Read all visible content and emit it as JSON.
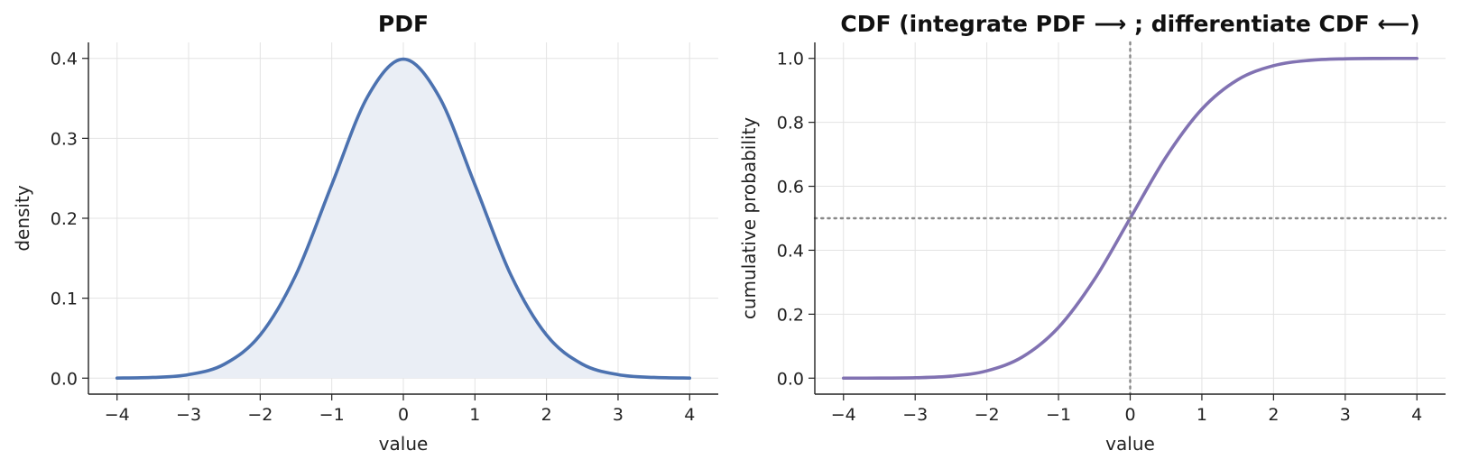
{
  "chart_data": [
    {
      "type": "area",
      "title": "PDF",
      "xlabel": "value",
      "ylabel": "density",
      "xlim": [
        -4.4,
        4.4
      ],
      "ylim": [
        -0.02,
        0.42
      ],
      "xticks": [
        -4,
        -3,
        -2,
        -1,
        0,
        1,
        2,
        3,
        4
      ],
      "xtick_labels": [
        "−4",
        "−3",
        "−2",
        "−1",
        "0",
        "1",
        "2",
        "3",
        "4"
      ],
      "yticks": [
        0.0,
        0.1,
        0.2,
        0.3,
        0.4
      ],
      "ytick_labels": [
        "0.0",
        "0.1",
        "0.2",
        "0.3",
        "0.4"
      ],
      "grid": true,
      "series": [
        {
          "color": "#4c72b0",
          "fill_color": "#eaeef5",
          "x": [
            -4,
            -3.5,
            -3,
            -2.5,
            -2,
            -1.5,
            -1,
            -0.5,
            0,
            0.5,
            1,
            1.5,
            2,
            2.5,
            3,
            3.5,
            4
          ],
          "y": [
            0.0001,
            0.0009,
            0.0044,
            0.0175,
            0.054,
            0.1295,
            0.242,
            0.352,
            0.399,
            0.352,
            0.242,
            0.1295,
            0.054,
            0.0175,
            0.0044,
            0.0009,
            0.0001
          ]
        }
      ]
    },
    {
      "type": "line",
      "title": "CDF  (integrate PDF ⟶ ;  differentiate CDF ⟵)",
      "xlabel": "value",
      "ylabel": "cumulative probability",
      "xlim": [
        -4.4,
        4.4
      ],
      "ylim": [
        -0.05,
        1.05
      ],
      "xticks": [
        -4,
        -3,
        -2,
        -1,
        0,
        1,
        2,
        3,
        4
      ],
      "xtick_labels": [
        "−4",
        "−3",
        "−2",
        "−1",
        "0",
        "1",
        "2",
        "3",
        "4"
      ],
      "yticks": [
        0.0,
        0.2,
        0.4,
        0.6,
        0.8,
        1.0
      ],
      "ytick_labels": [
        "0.0",
        "0.2",
        "0.4",
        "0.6",
        "0.8",
        "1.0"
      ],
      "grid": true,
      "reference_lines": [
        {
          "orientation": "horizontal",
          "value": 0.5,
          "style": "dotted",
          "color": "#888888"
        },
        {
          "orientation": "vertical",
          "value": 0,
          "style": "dotted",
          "color": "#888888"
        }
      ],
      "series": [
        {
          "color": "#8172b2",
          "x": [
            -4,
            -3.5,
            -3,
            -2.5,
            -2,
            -1.5,
            -1,
            -0.5,
            0,
            0.5,
            1,
            1.5,
            2,
            2.5,
            3,
            3.5,
            4
          ],
          "y": [
            3e-05,
            0.0002,
            0.0013,
            0.0062,
            0.0228,
            0.0668,
            0.1587,
            0.3085,
            0.5,
            0.6915,
            0.8413,
            0.9332,
            0.9772,
            0.9938,
            0.9987,
            0.9998,
            0.99997
          ]
        }
      ]
    }
  ]
}
